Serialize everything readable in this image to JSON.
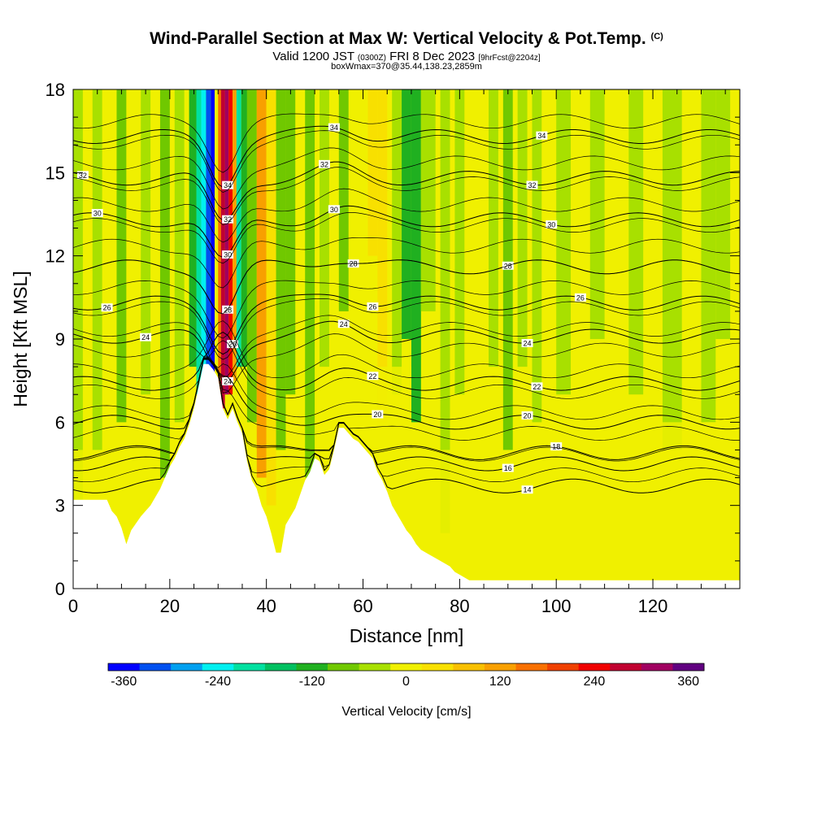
{
  "header": {
    "title": "Wind-Parallel Section at Max W: Vertical Velocity & Pot.Temp.",
    "copyright": "(C)",
    "valid_prefix": "Valid 1200 JST",
    "valid_utc": "(0300Z)",
    "valid_date": "FRI 8 Dec 2023",
    "forecast": "[9hrFcst@2204z]",
    "box_info": "boxWmax=370@35.44,138.23,2859m"
  },
  "chart_data": {
    "type": "heatmap",
    "xlabel": "Distance [nm]",
    "ylabel": "Height [Kft MSL]",
    "xlim": [
      0,
      138
    ],
    "ylim": [
      0,
      18
    ],
    "x_ticks": [
      0,
      20,
      40,
      60,
      80,
      100,
      120
    ],
    "y_ticks": [
      0,
      3,
      6,
      9,
      12,
      15,
      18
    ],
    "x_tick_labels": [
      "0",
      "20",
      "40",
      "60",
      "80",
      "100",
      "120"
    ],
    "y_tick_labels": [
      "0",
      "3",
      "6",
      "9",
      "12",
      "15",
      "18"
    ],
    "colorbar": {
      "label": "Vertical Velocity [cm/s]",
      "range": [
        -380,
        380
      ],
      "ticks": [
        "-360",
        "-240",
        "-120",
        "0",
        "120",
        "240",
        "360"
      ],
      "colors": [
        "#0000ff",
        "#0050f0",
        "#00a0f0",
        "#00f0f0",
        "#00e0a0",
        "#00c060",
        "#20b020",
        "#70c800",
        "#a8e000",
        "#f0f000",
        "#f8e000",
        "#f8c000",
        "#f8a000",
        "#f87000",
        "#f04000",
        "#f00000",
        "#c00030",
        "#a00060",
        "#600080"
      ]
    },
    "terrain": [
      [
        0,
        3.2
      ],
      [
        4,
        3.2
      ],
      [
        7,
        3.2
      ],
      [
        8,
        2.8
      ],
      [
        9,
        2.6
      ],
      [
        10,
        2.2
      ],
      [
        11,
        1.6
      ],
      [
        12,
        2.1
      ],
      [
        14,
        2.6
      ],
      [
        15,
        2.8
      ],
      [
        16,
        3.0
      ],
      [
        18,
        3.6
      ],
      [
        19,
        4.0
      ],
      [
        20,
        4.4
      ],
      [
        21,
        4.7
      ],
      [
        22,
        5.1
      ],
      [
        23,
        5.4
      ],
      [
        24,
        5.9
      ],
      [
        25,
        6.5
      ],
      [
        26,
        7.3
      ],
      [
        27,
        8.1
      ],
      [
        28,
        8.1
      ],
      [
        29,
        7.9
      ],
      [
        30,
        7.6
      ],
      [
        31,
        6.5
      ],
      [
        32,
        6.1
      ],
      [
        33,
        6.5
      ],
      [
        34,
        6.0
      ],
      [
        35,
        5.6
      ],
      [
        36,
        4.6
      ],
      [
        37,
        3.9
      ],
      [
        38,
        3.6
      ],
      [
        39,
        3.0
      ],
      [
        40,
        2.6
      ],
      [
        41,
        2.0
      ],
      [
        42,
        1.3
      ],
      [
        43,
        1.3
      ],
      [
        44,
        2.3
      ],
      [
        45,
        2.6
      ],
      [
        46,
        2.9
      ],
      [
        47,
        3.4
      ],
      [
        48,
        3.9
      ],
      [
        49,
        4.2
      ],
      [
        50,
        4.7
      ],
      [
        51,
        4.6
      ],
      [
        52,
        4.1
      ],
      [
        53,
        4.3
      ],
      [
        54,
        5.0
      ],
      [
        55,
        5.8
      ],
      [
        56,
        5.8
      ],
      [
        57,
        5.6
      ],
      [
        58,
        5.4
      ],
      [
        59,
        5.3
      ],
      [
        60,
        5.1
      ],
      [
        61,
        4.9
      ],
      [
        62,
        4.7
      ],
      [
        63,
        4.2
      ],
      [
        64,
        3.9
      ],
      [
        65,
        3.5
      ],
      [
        66,
        3.0
      ],
      [
        67,
        2.7
      ],
      [
        68,
        2.4
      ],
      [
        69,
        2.1
      ],
      [
        70,
        1.9
      ],
      [
        71,
        1.6
      ],
      [
        72,
        1.4
      ],
      [
        73,
        1.3
      ],
      [
        74,
        1.2
      ],
      [
        75,
        1.1
      ],
      [
        76,
        1.0
      ],
      [
        77,
        0.9
      ],
      [
        78,
        0.8
      ],
      [
        79,
        0.6
      ],
      [
        80,
        0.5
      ],
      [
        82,
        0.3
      ],
      [
        84,
        0.3
      ],
      [
        100,
        0.3
      ],
      [
        120,
        0.3
      ],
      [
        138,
        0.3
      ]
    ],
    "theta_contours": [
      {
        "value": 34,
        "level": 16.3,
        "label": "34",
        "label_x": [
          32,
          54,
          97
        ]
      },
      {
        "value": 32,
        "level": 14.8,
        "label": "32",
        "label_x": [
          2,
          32,
          52,
          95
        ]
      },
      {
        "value": 30,
        "level": 13.3,
        "label": "30",
        "label_x": [
          5,
          32,
          54,
          99
        ]
      },
      {
        "value": 28,
        "level": 11.6,
        "label": "28",
        "label_x": [
          32,
          58,
          90
        ]
      },
      {
        "value": 26,
        "level": 10.3,
        "label": "26",
        "label_x": [
          7,
          33,
          62,
          105
        ]
      },
      {
        "value": 24,
        "level": 9.1,
        "label": "24",
        "label_x": [
          15,
          32,
          56,
          94
        ]
      },
      {
        "value": 22,
        "level": 7.4,
        "label": "22",
        "label_x": [
          62,
          96
        ]
      },
      {
        "value": 20,
        "level": 6.0,
        "label": "20",
        "label_x": [
          63,
          94
        ]
      },
      {
        "value": 18,
        "level": 4.9,
        "label": "18",
        "label_x": [
          100
        ]
      },
      {
        "value": 16,
        "level": 4.5,
        "label": "16",
        "label_x": [
          90
        ]
      },
      {
        "value": 14,
        "level": 3.7,
        "label": "14",
        "label_x": [
          94
        ]
      }
    ]
  }
}
